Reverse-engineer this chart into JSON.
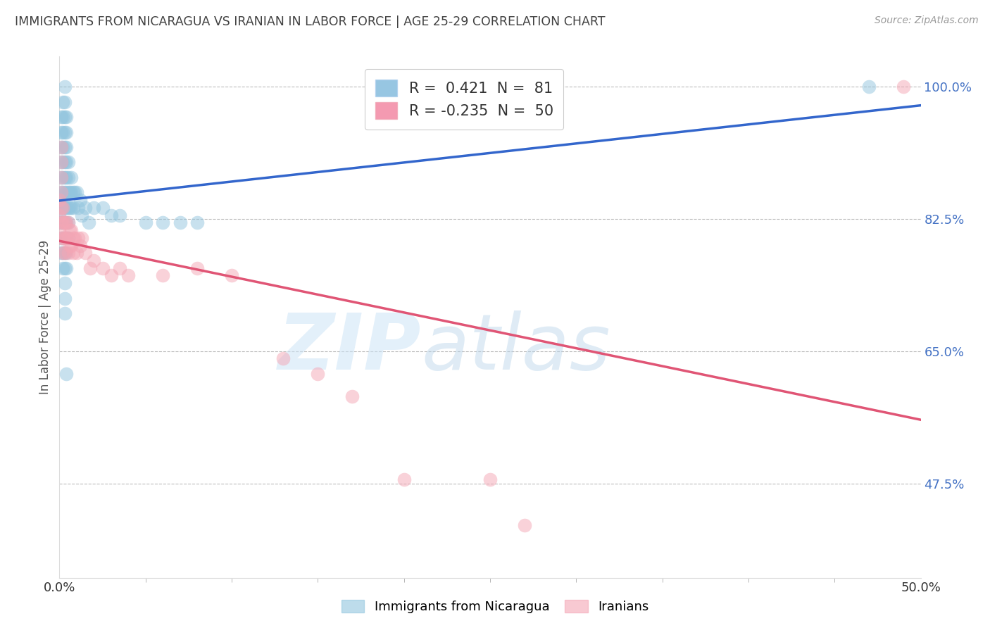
{
  "title": "IMMIGRANTS FROM NICARAGUA VS IRANIAN IN LABOR FORCE | AGE 25-29 CORRELATION CHART",
  "source_text": "Source: ZipAtlas.com",
  "ylabel": "In Labor Force | Age 25-29",
  "xlim": [
    0.0,
    0.5
  ],
  "ylim": [
    0.35,
    1.04
  ],
  "ytick_positions": [
    1.0,
    0.825,
    0.65,
    0.475
  ],
  "ytick_labels": [
    "100.0%",
    "82.5%",
    "65.0%",
    "47.5%"
  ],
  "legend1_label": "R =  0.421  N =  81",
  "legend2_label": "R = -0.235  N =  50",
  "legend_color1": "#6baed6",
  "legend_color2": "#f07090",
  "nicaragua_color": "#92c5de",
  "iranian_color": "#f4a6b5",
  "background_color": "#ffffff",
  "grid_color": "#bbbbbb",
  "axis_label_color": "#4472c4",
  "title_color": "#404040",
  "nicaragua_points": [
    [
      0.0,
      0.833
    ],
    [
      0.0,
      0.82
    ],
    [
      0.001,
      0.96
    ],
    [
      0.001,
      0.94
    ],
    [
      0.001,
      0.92
    ],
    [
      0.001,
      0.9
    ],
    [
      0.001,
      0.88
    ],
    [
      0.001,
      0.86
    ],
    [
      0.001,
      0.84
    ],
    [
      0.001,
      0.82
    ],
    [
      0.001,
      0.8
    ],
    [
      0.001,
      0.78
    ],
    [
      0.002,
      0.98
    ],
    [
      0.002,
      0.96
    ],
    [
      0.002,
      0.94
    ],
    [
      0.002,
      0.92
    ],
    [
      0.002,
      0.9
    ],
    [
      0.002,
      0.88
    ],
    [
      0.002,
      0.86
    ],
    [
      0.002,
      0.84
    ],
    [
      0.002,
      0.82
    ],
    [
      0.002,
      0.8
    ],
    [
      0.002,
      0.78
    ],
    [
      0.002,
      0.76
    ],
    [
      0.003,
      1.0
    ],
    [
      0.003,
      0.98
    ],
    [
      0.003,
      0.96
    ],
    [
      0.003,
      0.94
    ],
    [
      0.003,
      0.92
    ],
    [
      0.003,
      0.9
    ],
    [
      0.003,
      0.88
    ],
    [
      0.003,
      0.86
    ],
    [
      0.003,
      0.84
    ],
    [
      0.003,
      0.82
    ],
    [
      0.003,
      0.8
    ],
    [
      0.003,
      0.78
    ],
    [
      0.003,
      0.76
    ],
    [
      0.003,
      0.74
    ],
    [
      0.003,
      0.72
    ],
    [
      0.003,
      0.7
    ],
    [
      0.004,
      0.96
    ],
    [
      0.004,
      0.94
    ],
    [
      0.004,
      0.92
    ],
    [
      0.004,
      0.9
    ],
    [
      0.004,
      0.88
    ],
    [
      0.004,
      0.86
    ],
    [
      0.004,
      0.84
    ],
    [
      0.004,
      0.82
    ],
    [
      0.004,
      0.8
    ],
    [
      0.004,
      0.78
    ],
    [
      0.004,
      0.76
    ],
    [
      0.004,
      0.62
    ],
    [
      0.005,
      0.9
    ],
    [
      0.005,
      0.88
    ],
    [
      0.005,
      0.86
    ],
    [
      0.005,
      0.84
    ],
    [
      0.005,
      0.82
    ],
    [
      0.005,
      0.8
    ],
    [
      0.006,
      0.86
    ],
    [
      0.006,
      0.84
    ],
    [
      0.007,
      0.88
    ],
    [
      0.007,
      0.86
    ],
    [
      0.007,
      0.84
    ],
    [
      0.008,
      0.86
    ],
    [
      0.008,
      0.84
    ],
    [
      0.009,
      0.86
    ],
    [
      0.01,
      0.86
    ],
    [
      0.011,
      0.84
    ],
    [
      0.012,
      0.85
    ],
    [
      0.013,
      0.83
    ],
    [
      0.015,
      0.84
    ],
    [
      0.017,
      0.82
    ],
    [
      0.02,
      0.84
    ],
    [
      0.025,
      0.84
    ],
    [
      0.03,
      0.83
    ],
    [
      0.035,
      0.83
    ],
    [
      0.05,
      0.82
    ],
    [
      0.06,
      0.82
    ],
    [
      0.07,
      0.82
    ],
    [
      0.08,
      0.82
    ],
    [
      0.47,
      1.0
    ]
  ],
  "iranian_points": [
    [
      0.0,
      0.85
    ],
    [
      0.0,
      0.83
    ],
    [
      0.0,
      0.81
    ],
    [
      0.001,
      0.92
    ],
    [
      0.001,
      0.9
    ],
    [
      0.001,
      0.88
    ],
    [
      0.001,
      0.86
    ],
    [
      0.001,
      0.84
    ],
    [
      0.001,
      0.82
    ],
    [
      0.001,
      0.8
    ],
    [
      0.002,
      0.84
    ],
    [
      0.002,
      0.82
    ],
    [
      0.002,
      0.8
    ],
    [
      0.002,
      0.78
    ],
    [
      0.003,
      0.82
    ],
    [
      0.003,
      0.8
    ],
    [
      0.003,
      0.78
    ],
    [
      0.004,
      0.82
    ],
    [
      0.004,
      0.8
    ],
    [
      0.005,
      0.82
    ],
    [
      0.005,
      0.8
    ],
    [
      0.005,
      0.78
    ],
    [
      0.006,
      0.81
    ],
    [
      0.006,
      0.79
    ],
    [
      0.007,
      0.81
    ],
    [
      0.007,
      0.79
    ],
    [
      0.008,
      0.8
    ],
    [
      0.008,
      0.78
    ],
    [
      0.009,
      0.8
    ],
    [
      0.01,
      0.78
    ],
    [
      0.011,
      0.8
    ],
    [
      0.012,
      0.79
    ],
    [
      0.013,
      0.8
    ],
    [
      0.015,
      0.78
    ],
    [
      0.018,
      0.76
    ],
    [
      0.02,
      0.77
    ],
    [
      0.025,
      0.76
    ],
    [
      0.03,
      0.75
    ],
    [
      0.035,
      0.76
    ],
    [
      0.04,
      0.75
    ],
    [
      0.06,
      0.75
    ],
    [
      0.08,
      0.76
    ],
    [
      0.1,
      0.75
    ],
    [
      0.13,
      0.64
    ],
    [
      0.15,
      0.62
    ],
    [
      0.17,
      0.59
    ],
    [
      0.2,
      0.48
    ],
    [
      0.25,
      0.48
    ],
    [
      0.27,
      0.42
    ],
    [
      0.49,
      1.0
    ]
  ]
}
